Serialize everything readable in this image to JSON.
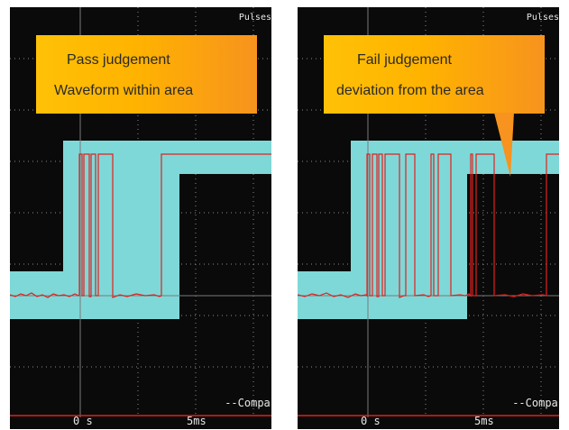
{
  "panels": [
    {
      "id": "pass",
      "corner_label": "Pulses",
      "callout_line1": "Pass judgement",
      "callout_line2": "Waveform within area",
      "x_tick_0": "0 s",
      "x_tick_1": "5ms",
      "bottom_label": "--Compar"
    },
    {
      "id": "fail",
      "corner_label": "Pulses",
      "callout_line1": "Fail judgement",
      "callout_line2": "deviation from the area",
      "x_tick_0": "0 s",
      "x_tick_1": "5ms",
      "bottom_label": "--Compar"
    }
  ],
  "colors": {
    "screen_bg": "#0a0a0a",
    "mask_area": "#7fd8d8",
    "waveform": "#e0211d",
    "grid": "#8a8a8a",
    "callout_start": "#ffc107",
    "callout_end": "#f7931e"
  }
}
